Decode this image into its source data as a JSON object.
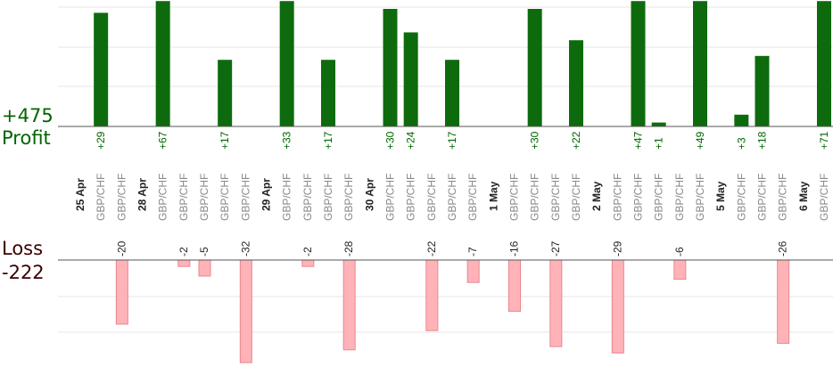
{
  "summary": {
    "profit_total": "+475",
    "profit_label": "Profit",
    "loss_label": "Loss",
    "loss_total": "-222"
  },
  "colors": {
    "profit_bar": "#0d6b0d",
    "profit_text": "#006400",
    "loss_bar": "#ffb3b8",
    "loss_bar_border": "#e8868e",
    "grid": "#e6e6e6",
    "axis": "#555555",
    "pair_text": "#888888",
    "date_text": "#222222"
  },
  "chart_data": {
    "type": "bar",
    "pair": "GBP/CHF",
    "dates": [
      {
        "label": "25 Apr",
        "col": 0
      },
      {
        "label": "28 Apr",
        "col": 2
      },
      {
        "label": "29 Apr",
        "col": 7
      },
      {
        "label": "30 Apr",
        "col": 11
      },
      {
        "label": "1 May",
        "col": 16
      },
      {
        "label": "2 May",
        "col": 20
      },
      {
        "label": "5 May",
        "col": 25
      },
      {
        "label": "6 May",
        "col": 28
      }
    ],
    "trades": [
      29,
      -20,
      67,
      -2,
      -5,
      17,
      -32,
      33,
      -2,
      17,
      -28,
      30,
      24,
      -22,
      17,
      -7,
      -16,
      30,
      -27,
      22,
      -29,
      47,
      1,
      -6,
      49,
      3,
      18,
      -26,
      71
    ],
    "profit_ylim": [
      0,
      32
    ],
    "loss_ylim": [
      -32,
      0
    ]
  }
}
